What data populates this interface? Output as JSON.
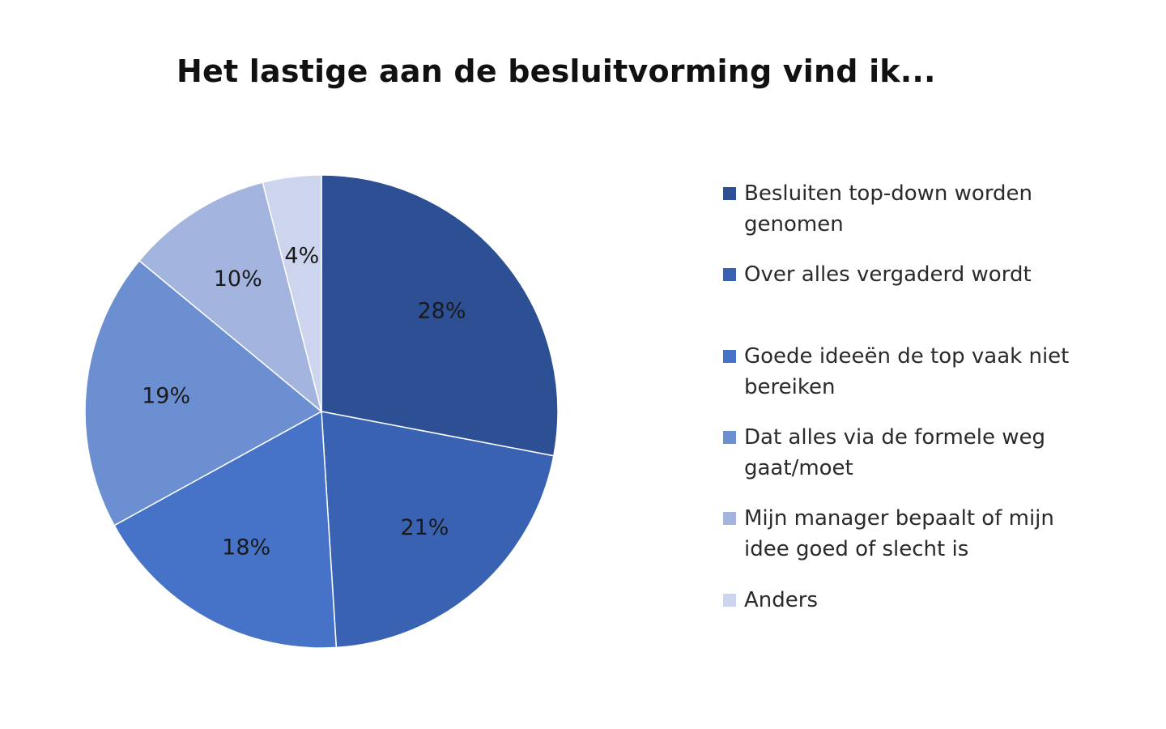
{
  "chart_data": {
    "type": "pie",
    "title": "Het lastige aan de besluitvorming vind ik...",
    "categories": [
      "Besluiten top-down worden genomen",
      "Over alles vergaderd wordt",
      "Goede ideeën de top vaak niet bereiken",
      "Dat alles via de formele weg gaat/moet",
      "Mijn manager bepaalt of mijn idee goed of slecht is",
      "Anders"
    ],
    "values": [
      28,
      21,
      18,
      19,
      10,
      4
    ],
    "labels": [
      "28%",
      "21%",
      "18%",
      "19%",
      "10%",
      "4%"
    ],
    "colors": [
      "#2d4f93",
      "#3a62b3",
      "#4673c7",
      "#6c8fd1",
      "#a3b4df",
      "#cdd5ee"
    ],
    "legend": "right",
    "start_angle": "12 o'clock",
    "direction": "clockwise"
  }
}
